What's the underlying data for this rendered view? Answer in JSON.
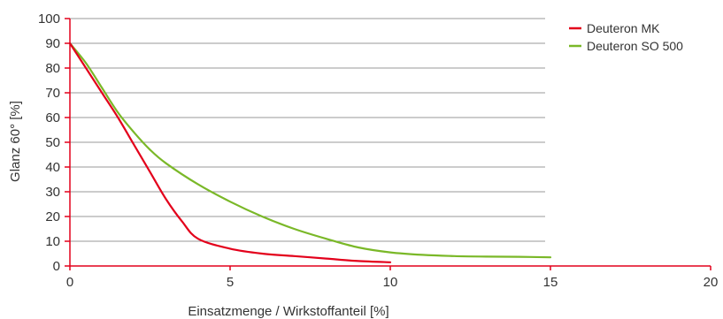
{
  "chart_data": {
    "type": "line",
    "xlabel": "Einsatzmenge / Wirkstoffanteil [%]",
    "ylabel": "Glanz 60° [%]",
    "xlim": [
      0,
      20
    ],
    "ylim": [
      0,
      100
    ],
    "x_ticks": [
      0,
      5,
      10,
      15,
      20
    ],
    "y_ticks": [
      0,
      10,
      20,
      30,
      40,
      50,
      60,
      70,
      80,
      90,
      100
    ],
    "grid": "horizontal",
    "legend_position": "top-right",
    "axis_color": "#e3001b",
    "grid_color": "#9a9a9a",
    "series": [
      {
        "name": "Deuteron MK",
        "color": "#e3001b",
        "x": [
          0,
          0.5,
          1,
          1.5,
          2,
          2.5,
          3,
          3.5,
          4,
          5,
          6,
          7,
          8,
          9,
          10
        ],
        "y": [
          90,
          80,
          70,
          60,
          49,
          38,
          27,
          18,
          11,
          7,
          5,
          4,
          3,
          2,
          1.5
        ]
      },
      {
        "name": "Deuteron SO 500",
        "color": "#7ab828",
        "x": [
          0,
          0.5,
          1,
          1.5,
          2,
          2.5,
          3,
          4,
          5,
          6,
          7,
          8,
          9,
          10,
          11,
          12,
          13,
          14,
          15
        ],
        "y": [
          90,
          82,
          72,
          62,
          54,
          47,
          41.5,
          33,
          26,
          20,
          15,
          11,
          7.5,
          5.5,
          4.5,
          4,
          3.8,
          3.7,
          3.5
        ]
      }
    ]
  }
}
